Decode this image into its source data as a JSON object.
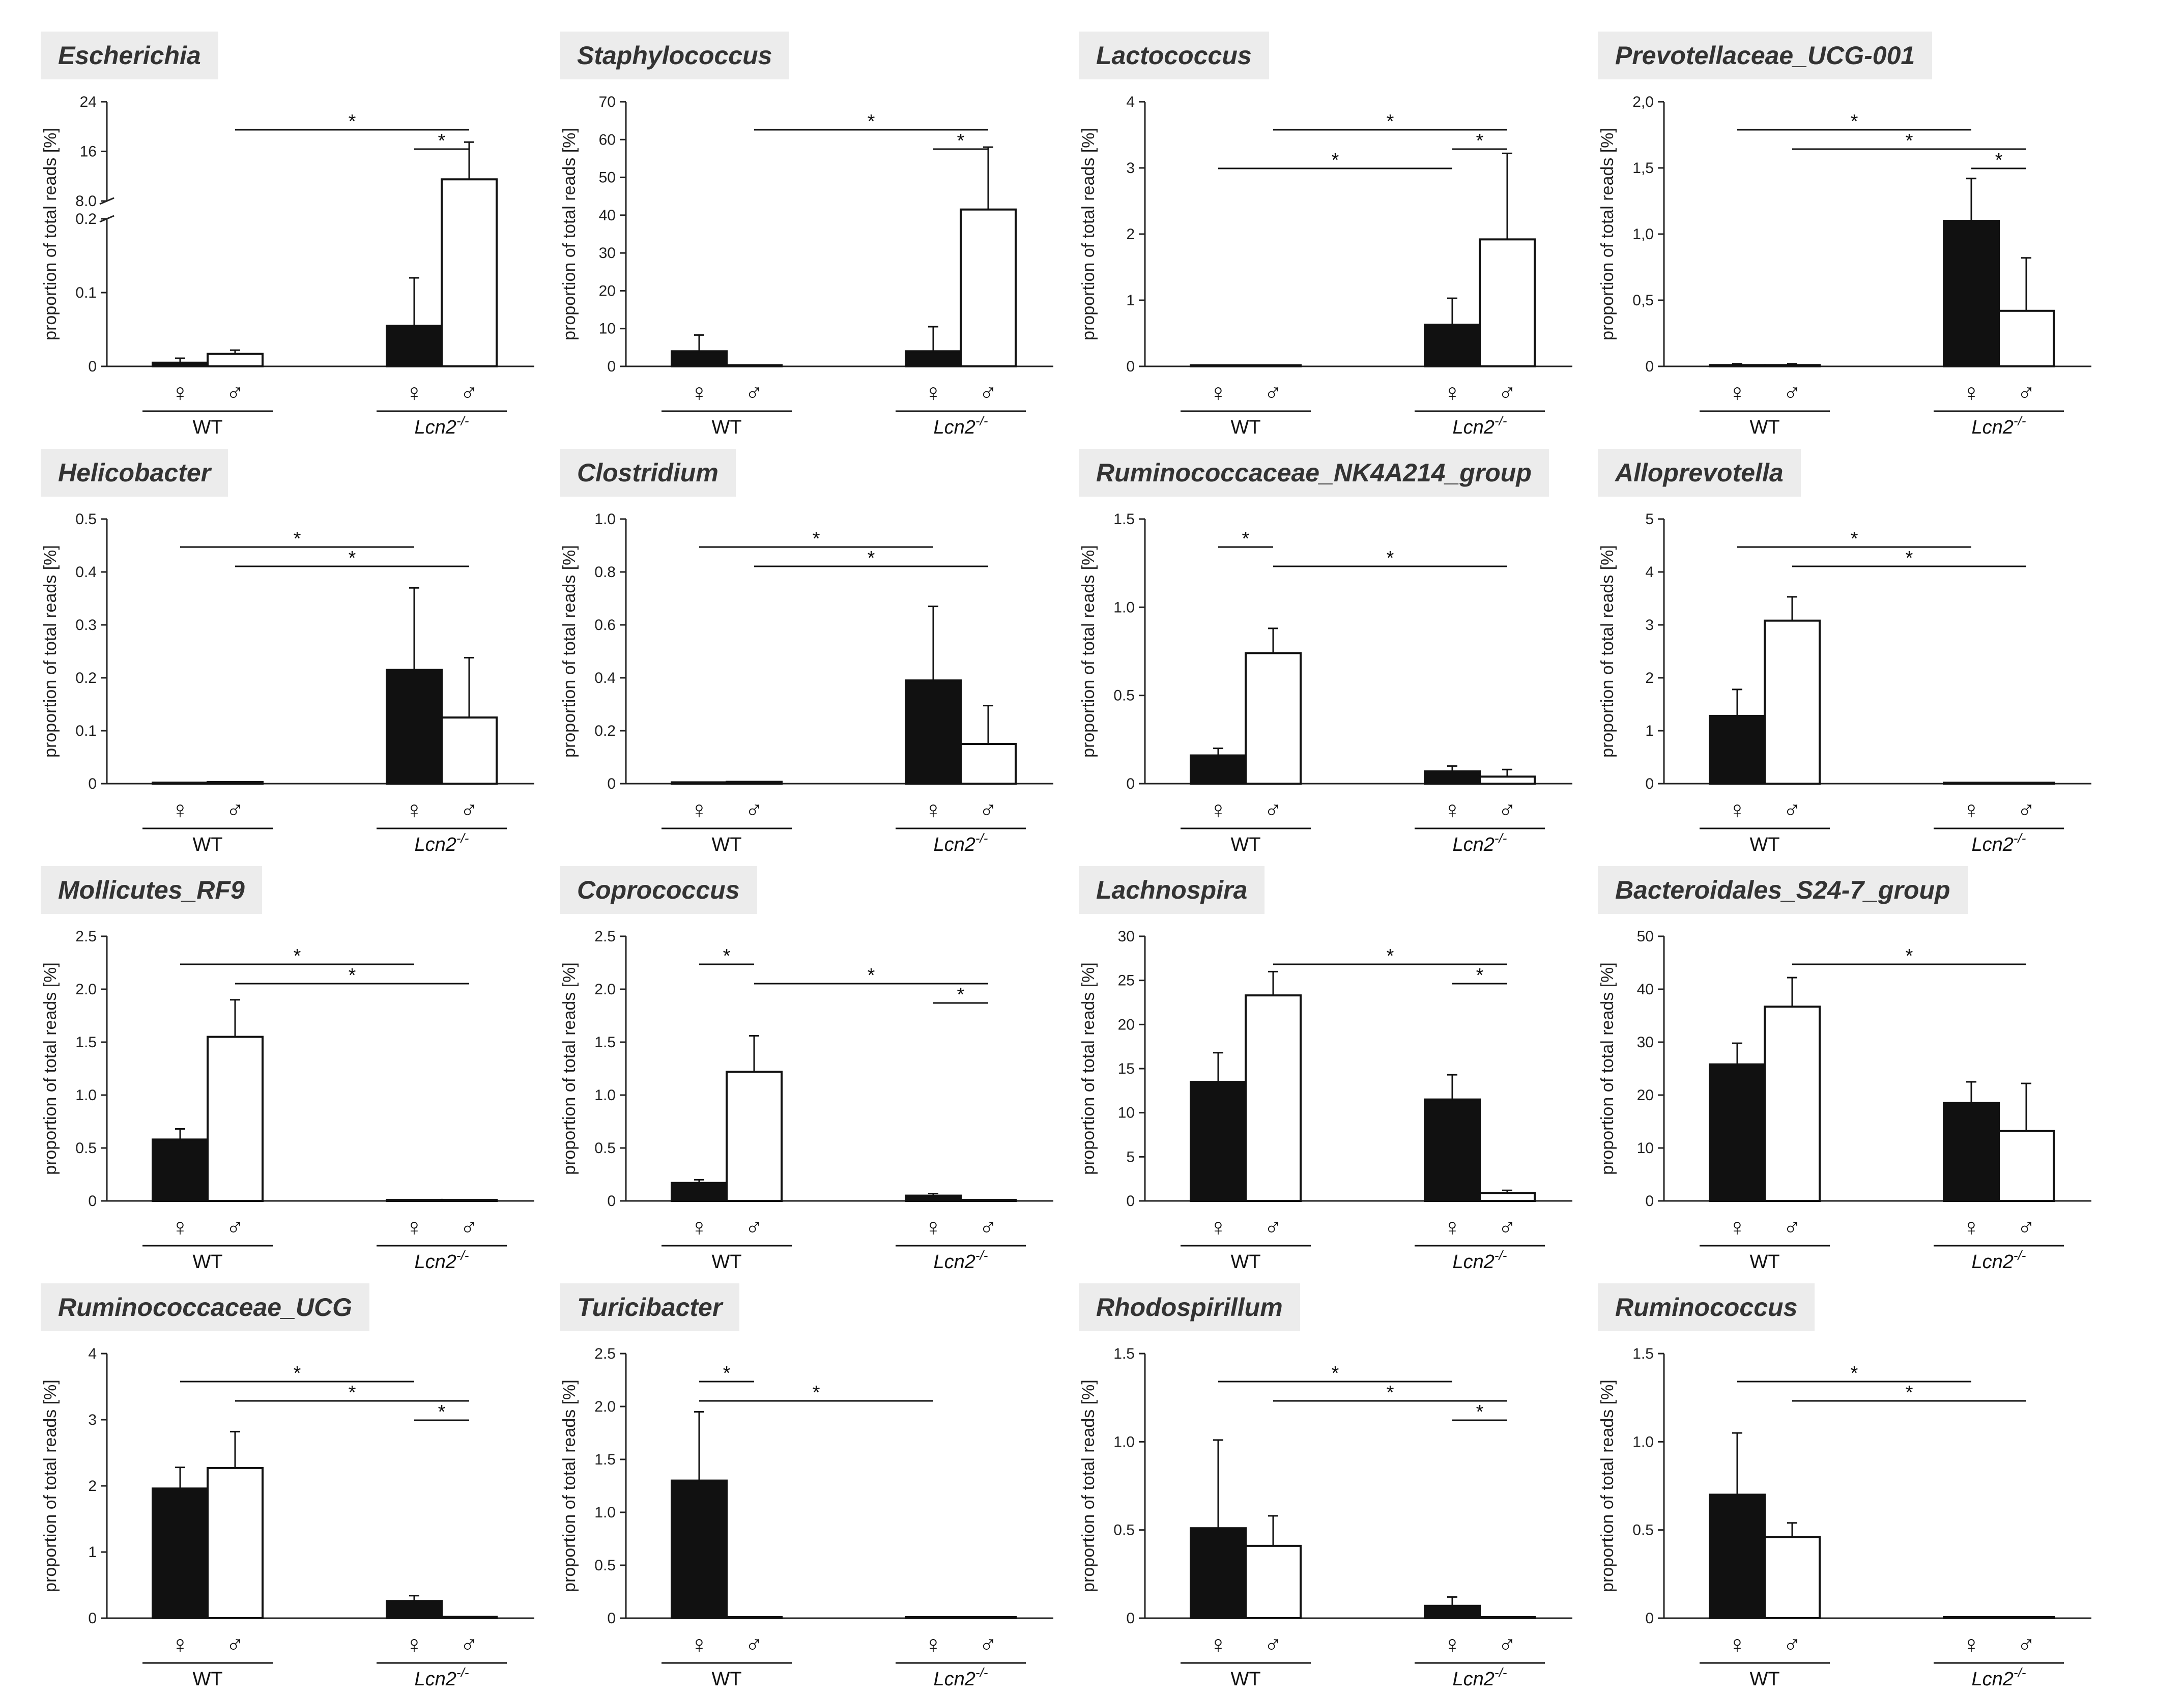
{
  "figure": {
    "n_panels": 16
  },
  "chart_data": [
    {
      "type": "bar",
      "title": "Escherichia",
      "ylabel": "proportion of total reads [%]",
      "groups": [
        "WT",
        "Lcn2-/-"
      ],
      "sexes": [
        "♀",
        "♂"
      ],
      "axis": {
        "broken": true,
        "lower_ticks": [
          "0",
          "0.1",
          "0.2"
        ],
        "lower_max": 0.2,
        "upper_ticks": [
          "8.0",
          "16",
          "24"
        ],
        "upper_min": 8,
        "upper_max": 24
      },
      "series": [
        {
          "name": "female",
          "values": [
            0.005,
            0.055
          ],
          "errors": [
            0.006,
            0.065
          ]
        },
        {
          "name": "male",
          "values": [
            0.017,
            11.5
          ],
          "errors": [
            0.005,
            6
          ]
        }
      ],
      "significance": [
        {
          "from": [
            0,
            1
          ],
          "to": [
            1,
            1
          ],
          "label": "*"
        },
        {
          "from": [
            1,
            0
          ],
          "to": [
            1,
            1
          ],
          "label": "*"
        }
      ]
    },
    {
      "type": "bar",
      "title": "Staphylococcus",
      "ylabel": "proportion of total reads [%]",
      "groups": [
        "WT",
        "Lcn2-/-"
      ],
      "sexes": [
        "♀",
        "♂"
      ],
      "ylim": [
        0,
        70
      ],
      "ticks": [
        "0",
        "10",
        "20",
        "30",
        "40",
        "50",
        "60",
        "70"
      ],
      "series": [
        {
          "name": "female",
          "values": [
            4,
            4
          ],
          "errors": [
            4.3,
            6.5
          ]
        },
        {
          "name": "male",
          "values": [
            0.3,
            41.5
          ],
          "errors": [
            0.2,
            16.5
          ]
        }
      ],
      "significance": [
        {
          "from": [
            0,
            1
          ],
          "to": [
            1,
            1
          ],
          "label": "*"
        },
        {
          "from": [
            1,
            0
          ],
          "to": [
            1,
            1
          ],
          "label": "*"
        }
      ]
    },
    {
      "type": "bar",
      "title": "Lactococcus",
      "ylabel": "proportion of total reads [%]",
      "groups": [
        "WT",
        "Lcn2-/-"
      ],
      "sexes": [
        "♀",
        "♂"
      ],
      "ylim": [
        0,
        4
      ],
      "ticks": [
        "0",
        "1",
        "2",
        "3",
        "4"
      ],
      "series": [
        {
          "name": "female",
          "values": [
            0.01,
            0.63
          ],
          "errors": [
            0.01,
            0.4
          ]
        },
        {
          "name": "male",
          "values": [
            0.01,
            1.92
          ],
          "errors": [
            0.01,
            1.3
          ]
        }
      ],
      "significance": [
        {
          "from": [
            0,
            1
          ],
          "to": [
            1,
            1
          ],
          "label": "*"
        },
        {
          "from": [
            1,
            0
          ],
          "to": [
            1,
            1
          ],
          "label": "*"
        },
        {
          "from": [
            0,
            0
          ],
          "to": [
            1,
            0
          ],
          "label": "*"
        }
      ]
    },
    {
      "type": "bar",
      "title": "Prevotellaceae_UCG-001",
      "ylabel": "proportion of total reads [%]",
      "groups": [
        "WT",
        "Lcn2-/-"
      ],
      "sexes": [
        "♀",
        "♂"
      ],
      "ylim": [
        0,
        2
      ],
      "ticks": [
        "0",
        "0,5",
        "1,0",
        "1,5",
        "2,0"
      ],
      "series": [
        {
          "name": "female",
          "values": [
            0.01,
            1.1
          ],
          "errors": [
            0.01,
            0.32
          ]
        },
        {
          "name": "male",
          "values": [
            0.01,
            0.42
          ],
          "errors": [
            0.01,
            0.4
          ]
        }
      ],
      "significance": [
        {
          "from": [
            0,
            0
          ],
          "to": [
            1,
            0
          ],
          "label": "*"
        },
        {
          "from": [
            0,
            1
          ],
          "to": [
            1,
            1
          ],
          "label": "*"
        },
        {
          "from": [
            1,
            0
          ],
          "to": [
            1,
            1
          ],
          "label": "*"
        }
      ]
    },
    {
      "type": "bar",
      "title": "Helicobacter",
      "ylabel": "proportion of total reads [%]",
      "groups": [
        "WT",
        "Lcn2-/-"
      ],
      "sexes": [
        "♀",
        "♂"
      ],
      "ylim": [
        0,
        0.5
      ],
      "ticks": [
        "0",
        "0.1",
        "0.2",
        "0.3",
        "0.4",
        "0.5"
      ],
      "series": [
        {
          "name": "female",
          "values": [
            0.002,
            0.215
          ],
          "errors": [
            0.001,
            0.155
          ]
        },
        {
          "name": "male",
          "values": [
            0.003,
            0.125
          ],
          "errors": [
            0.001,
            0.113
          ]
        }
      ],
      "significance": [
        {
          "from": [
            0,
            0
          ],
          "to": [
            1,
            0
          ],
          "label": "*"
        },
        {
          "from": [
            0,
            1
          ],
          "to": [
            1,
            1
          ],
          "label": "*"
        }
      ]
    },
    {
      "type": "bar",
      "title": "Clostridium",
      "ylabel": "proportion of total reads [%]",
      "groups": [
        "WT",
        "Lcn2-/-"
      ],
      "sexes": [
        "♀",
        "♂"
      ],
      "ylim": [
        0,
        1
      ],
      "ticks": [
        "0",
        "0.2",
        "0.4",
        "0.6",
        "0.8",
        "1.0"
      ],
      "series": [
        {
          "name": "female",
          "values": [
            0.005,
            0.39
          ],
          "errors": [
            0.001,
            0.28
          ]
        },
        {
          "name": "male",
          "values": [
            0.007,
            0.15
          ],
          "errors": [
            0.001,
            0.145
          ]
        }
      ],
      "significance": [
        {
          "from": [
            0,
            0
          ],
          "to": [
            1,
            0
          ],
          "label": "*"
        },
        {
          "from": [
            0,
            1
          ],
          "to": [
            1,
            1
          ],
          "label": "*"
        }
      ]
    },
    {
      "type": "bar",
      "title": "Ruminococcaceae_NK4A214_group",
      "ylabel": "proportion of total reads [%]",
      "groups": [
        "WT",
        "Lcn2-/-"
      ],
      "sexes": [
        "♀",
        "♂"
      ],
      "ylim": [
        0,
        1.5
      ],
      "ticks": [
        "0",
        "0.5",
        "1.0",
        "1.5"
      ],
      "series": [
        {
          "name": "female",
          "values": [
            0.16,
            0.07
          ],
          "errors": [
            0.04,
            0.03
          ]
        },
        {
          "name": "male",
          "values": [
            0.74,
            0.04
          ],
          "errors": [
            0.14,
            0.04
          ]
        }
      ],
      "significance": [
        {
          "from": [
            0,
            0
          ],
          "to": [
            0,
            1
          ],
          "label": "*"
        },
        {
          "from": [
            0,
            1
          ],
          "to": [
            1,
            1
          ],
          "label": "*"
        }
      ]
    },
    {
      "type": "bar",
      "title": "Alloprevotella",
      "ylabel": "proportion of total reads [%]",
      "groups": [
        "WT",
        "Lcn2-/-"
      ],
      "sexes": [
        "♀",
        "♂"
      ],
      "ylim": [
        0,
        5
      ],
      "ticks": [
        "0",
        "1",
        "2",
        "3",
        "4",
        "5"
      ],
      "series": [
        {
          "name": "female",
          "values": [
            1.28,
            0.01
          ],
          "errors": [
            0.5,
            0.01
          ]
        },
        {
          "name": "male",
          "values": [
            3.08,
            0.01
          ],
          "errors": [
            0.45,
            0.01
          ]
        }
      ],
      "significance": [
        {
          "from": [
            0,
            0
          ],
          "to": [
            1,
            0
          ],
          "label": "*"
        },
        {
          "from": [
            0,
            1
          ],
          "to": [
            1,
            1
          ],
          "label": "*"
        }
      ]
    },
    {
      "type": "bar",
      "title": "Mollicutes_RF9",
      "ylabel": "proportion of total reads [%]",
      "groups": [
        "WT",
        "Lcn2-/-"
      ],
      "sexes": [
        "♀",
        "♂"
      ],
      "ylim": [
        0,
        2.5
      ],
      "ticks": [
        "0",
        "0.5",
        "1.0",
        "1.5",
        "2.0",
        "2.5"
      ],
      "series": [
        {
          "name": "female",
          "values": [
            0.58,
            0.01
          ],
          "errors": [
            0.1,
            0.005
          ]
        },
        {
          "name": "male",
          "values": [
            1.55,
            0.01
          ],
          "errors": [
            0.35,
            0.005
          ]
        }
      ],
      "significance": [
        {
          "from": [
            0,
            0
          ],
          "to": [
            1,
            0
          ],
          "label": "*"
        },
        {
          "from": [
            0,
            1
          ],
          "to": [
            1,
            1
          ],
          "label": "*"
        }
      ]
    },
    {
      "type": "bar",
      "title": "Coprococcus",
      "ylabel": "proportion of total reads [%]",
      "groups": [
        "WT",
        "Lcn2-/-"
      ],
      "sexes": [
        "♀",
        "♂"
      ],
      "ylim": [
        0,
        2.5
      ],
      "ticks": [
        "0",
        "0.5",
        "1.0",
        "1.5",
        "2.0",
        "2.5"
      ],
      "series": [
        {
          "name": "female",
          "values": [
            0.17,
            0.05
          ],
          "errors": [
            0.03,
            0.02
          ]
        },
        {
          "name": "male",
          "values": [
            1.22,
            0.005
          ],
          "errors": [
            0.34,
            0.003
          ]
        }
      ],
      "significance": [
        {
          "from": [
            0,
            0
          ],
          "to": [
            0,
            1
          ],
          "label": "*"
        },
        {
          "from": [
            0,
            1
          ],
          "to": [
            1,
            1
          ],
          "label": "*"
        },
        {
          "from": [
            1,
            0
          ],
          "to": [
            1,
            1
          ],
          "label": "*"
        }
      ]
    },
    {
      "type": "bar",
      "title": "Lachnospira",
      "ylabel": "proportion of total reads [%]",
      "groups": [
        "WT",
        "Lcn2-/-"
      ],
      "sexes": [
        "♀",
        "♂"
      ],
      "ylim": [
        0,
        30
      ],
      "ticks": [
        "0",
        "5",
        "10",
        "15",
        "20",
        "25",
        "30"
      ],
      "series": [
        {
          "name": "female",
          "values": [
            13.5,
            11.5
          ],
          "errors": [
            3.3,
            2.8
          ]
        },
        {
          "name": "male",
          "values": [
            23.3,
            0.9
          ],
          "errors": [
            2.7,
            0.3
          ]
        }
      ],
      "significance": [
        {
          "from": [
            0,
            1
          ],
          "to": [
            1,
            1
          ],
          "label": "*"
        },
        {
          "from": [
            1,
            0
          ],
          "to": [
            1,
            1
          ],
          "label": "*"
        }
      ]
    },
    {
      "type": "bar",
      "title": "Bacteroidales_S24-7_group",
      "ylabel": "proportion of total reads [%]",
      "groups": [
        "WT",
        "Lcn2-/-"
      ],
      "sexes": [
        "♀",
        "♂"
      ],
      "ylim": [
        0,
        50
      ],
      "ticks": [
        "0",
        "10",
        "20",
        "30",
        "40",
        "50"
      ],
      "series": [
        {
          "name": "female",
          "values": [
            25.8,
            18.5
          ],
          "errors": [
            4,
            4
          ]
        },
        {
          "name": "male",
          "values": [
            36.7,
            13.2
          ],
          "errors": [
            5.5,
            9
          ]
        }
      ],
      "significance": [
        {
          "from": [
            0,
            1
          ],
          "to": [
            1,
            1
          ],
          "label": "*"
        }
      ]
    },
    {
      "type": "bar",
      "title": "Ruminococcaceae_UCG",
      "ylabel": "proportion of total reads [%]",
      "groups": [
        "WT",
        "Lcn2-/-"
      ],
      "sexes": [
        "♀",
        "♂"
      ],
      "ylim": [
        0,
        4
      ],
      "ticks": [
        "0",
        "1",
        "2",
        "3",
        "4"
      ],
      "series": [
        {
          "name": "female",
          "values": [
            1.96,
            0.26
          ],
          "errors": [
            0.32,
            0.08
          ]
        },
        {
          "name": "male",
          "values": [
            2.27,
            0.02
          ],
          "errors": [
            0.55,
            0.01
          ]
        }
      ],
      "significance": [
        {
          "from": [
            0,
            0
          ],
          "to": [
            1,
            0
          ],
          "label": "*"
        },
        {
          "from": [
            0,
            1
          ],
          "to": [
            1,
            1
          ],
          "label": "*"
        },
        {
          "from": [
            1,
            0
          ],
          "to": [
            1,
            1
          ],
          "label": "*"
        }
      ]
    },
    {
      "type": "bar",
      "title": "Turicibacter",
      "ylabel": "proportion of total reads [%]",
      "groups": [
        "WT",
        "Lcn2-/-"
      ],
      "sexes": [
        "♀",
        "♂"
      ],
      "ylim": [
        0,
        2.5
      ],
      "ticks": [
        "0",
        "0.5",
        "1.0",
        "1.5",
        "2.0",
        "2.5"
      ],
      "series": [
        {
          "name": "female",
          "values": [
            1.3,
            0.005
          ],
          "errors": [
            0.65,
            0.003
          ]
        },
        {
          "name": "male",
          "values": [
            0.005,
            0.003
          ],
          "errors": [
            0.003,
            0.002
          ]
        }
      ],
      "significance": [
        {
          "from": [
            0,
            0
          ],
          "to": [
            0,
            1
          ],
          "label": "*"
        },
        {
          "from": [
            0,
            0
          ],
          "to": [
            1,
            0
          ],
          "label": "*"
        }
      ]
    },
    {
      "type": "bar",
      "title": "Rhodospirillum",
      "ylabel": "proportion of total reads [%]",
      "groups": [
        "WT",
        "Lcn2-/-"
      ],
      "sexes": [
        "♀",
        "♂"
      ],
      "ylim": [
        0,
        1.5
      ],
      "ticks": [
        "0",
        "0.5",
        "1.0",
        "1.5"
      ],
      "series": [
        {
          "name": "female",
          "values": [
            0.51,
            0.07
          ],
          "errors": [
            0.5,
            0.05
          ]
        },
        {
          "name": "male",
          "values": [
            0.41,
            0.003
          ],
          "errors": [
            0.17,
            0.002
          ]
        }
      ],
      "significance": [
        {
          "from": [
            0,
            0
          ],
          "to": [
            1,
            0
          ],
          "label": "*"
        },
        {
          "from": [
            0,
            1
          ],
          "to": [
            1,
            1
          ],
          "label": "*"
        },
        {
          "from": [
            1,
            0
          ],
          "to": [
            1,
            1
          ],
          "label": "*"
        }
      ]
    },
    {
      "type": "bar",
      "title": "Ruminococcus",
      "ylabel": "proportion of total reads [%]",
      "groups": [
        "WT",
        "Lcn2-/-"
      ],
      "sexes": [
        "♀",
        "♂"
      ],
      "ylim": [
        0,
        1.5
      ],
      "ticks": [
        "0",
        "0.5",
        "1.0",
        "1.5"
      ],
      "series": [
        {
          "name": "female",
          "values": [
            0.7,
            0.003
          ],
          "errors": [
            0.35,
            0.002
          ]
        },
        {
          "name": "male",
          "values": [
            0.46,
            0.002
          ],
          "errors": [
            0.08,
            0.001
          ]
        }
      ],
      "significance": [
        {
          "from": [
            0,
            0
          ],
          "to": [
            1,
            0
          ],
          "label": "*"
        },
        {
          "from": [
            0,
            1
          ],
          "to": [
            1,
            1
          ],
          "label": "*"
        }
      ]
    }
  ]
}
